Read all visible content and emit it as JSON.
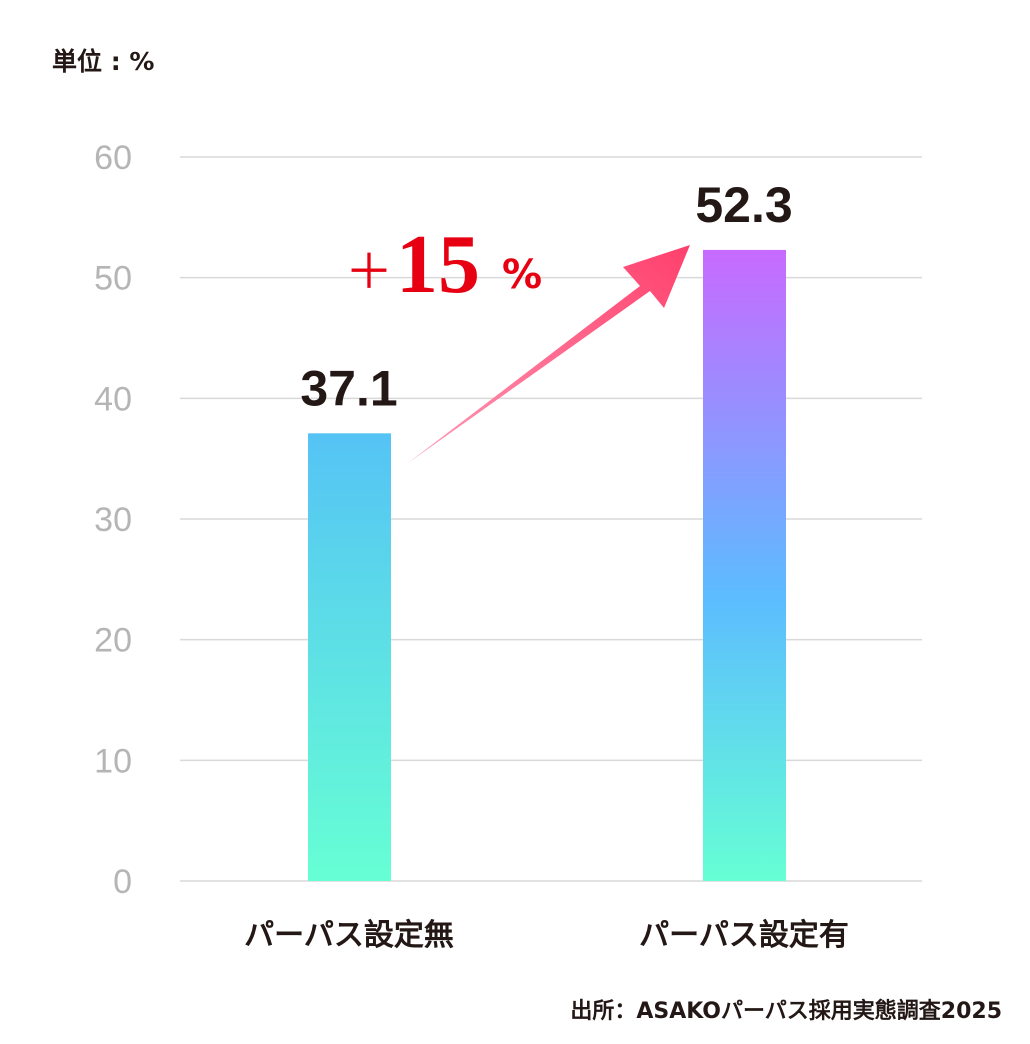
{
  "chart_data": {
    "type": "bar",
    "unit_label": "単位 : %",
    "categories": [
      "パーパス設定無",
      "パーパス設定有"
    ],
    "values": [
      37.1,
      52.3
    ],
    "value_labels": [
      "37.1",
      "52.3"
    ],
    "ylim": [
      0,
      60
    ],
    "yticks": [
      0,
      10,
      20,
      30,
      40,
      50,
      60
    ],
    "grid": true,
    "annotation": {
      "plus": "＋",
      "number": "15",
      "percent": "%",
      "color": "#e60012"
    },
    "arrow_color": "#ff3f6c",
    "bar_colors": {
      "bottom": "#66ffd4",
      "middle": "#5cbcff",
      "top": "#c86aff"
    },
    "source": "出所：ASAKOパーパス採用実態調査2025"
  }
}
